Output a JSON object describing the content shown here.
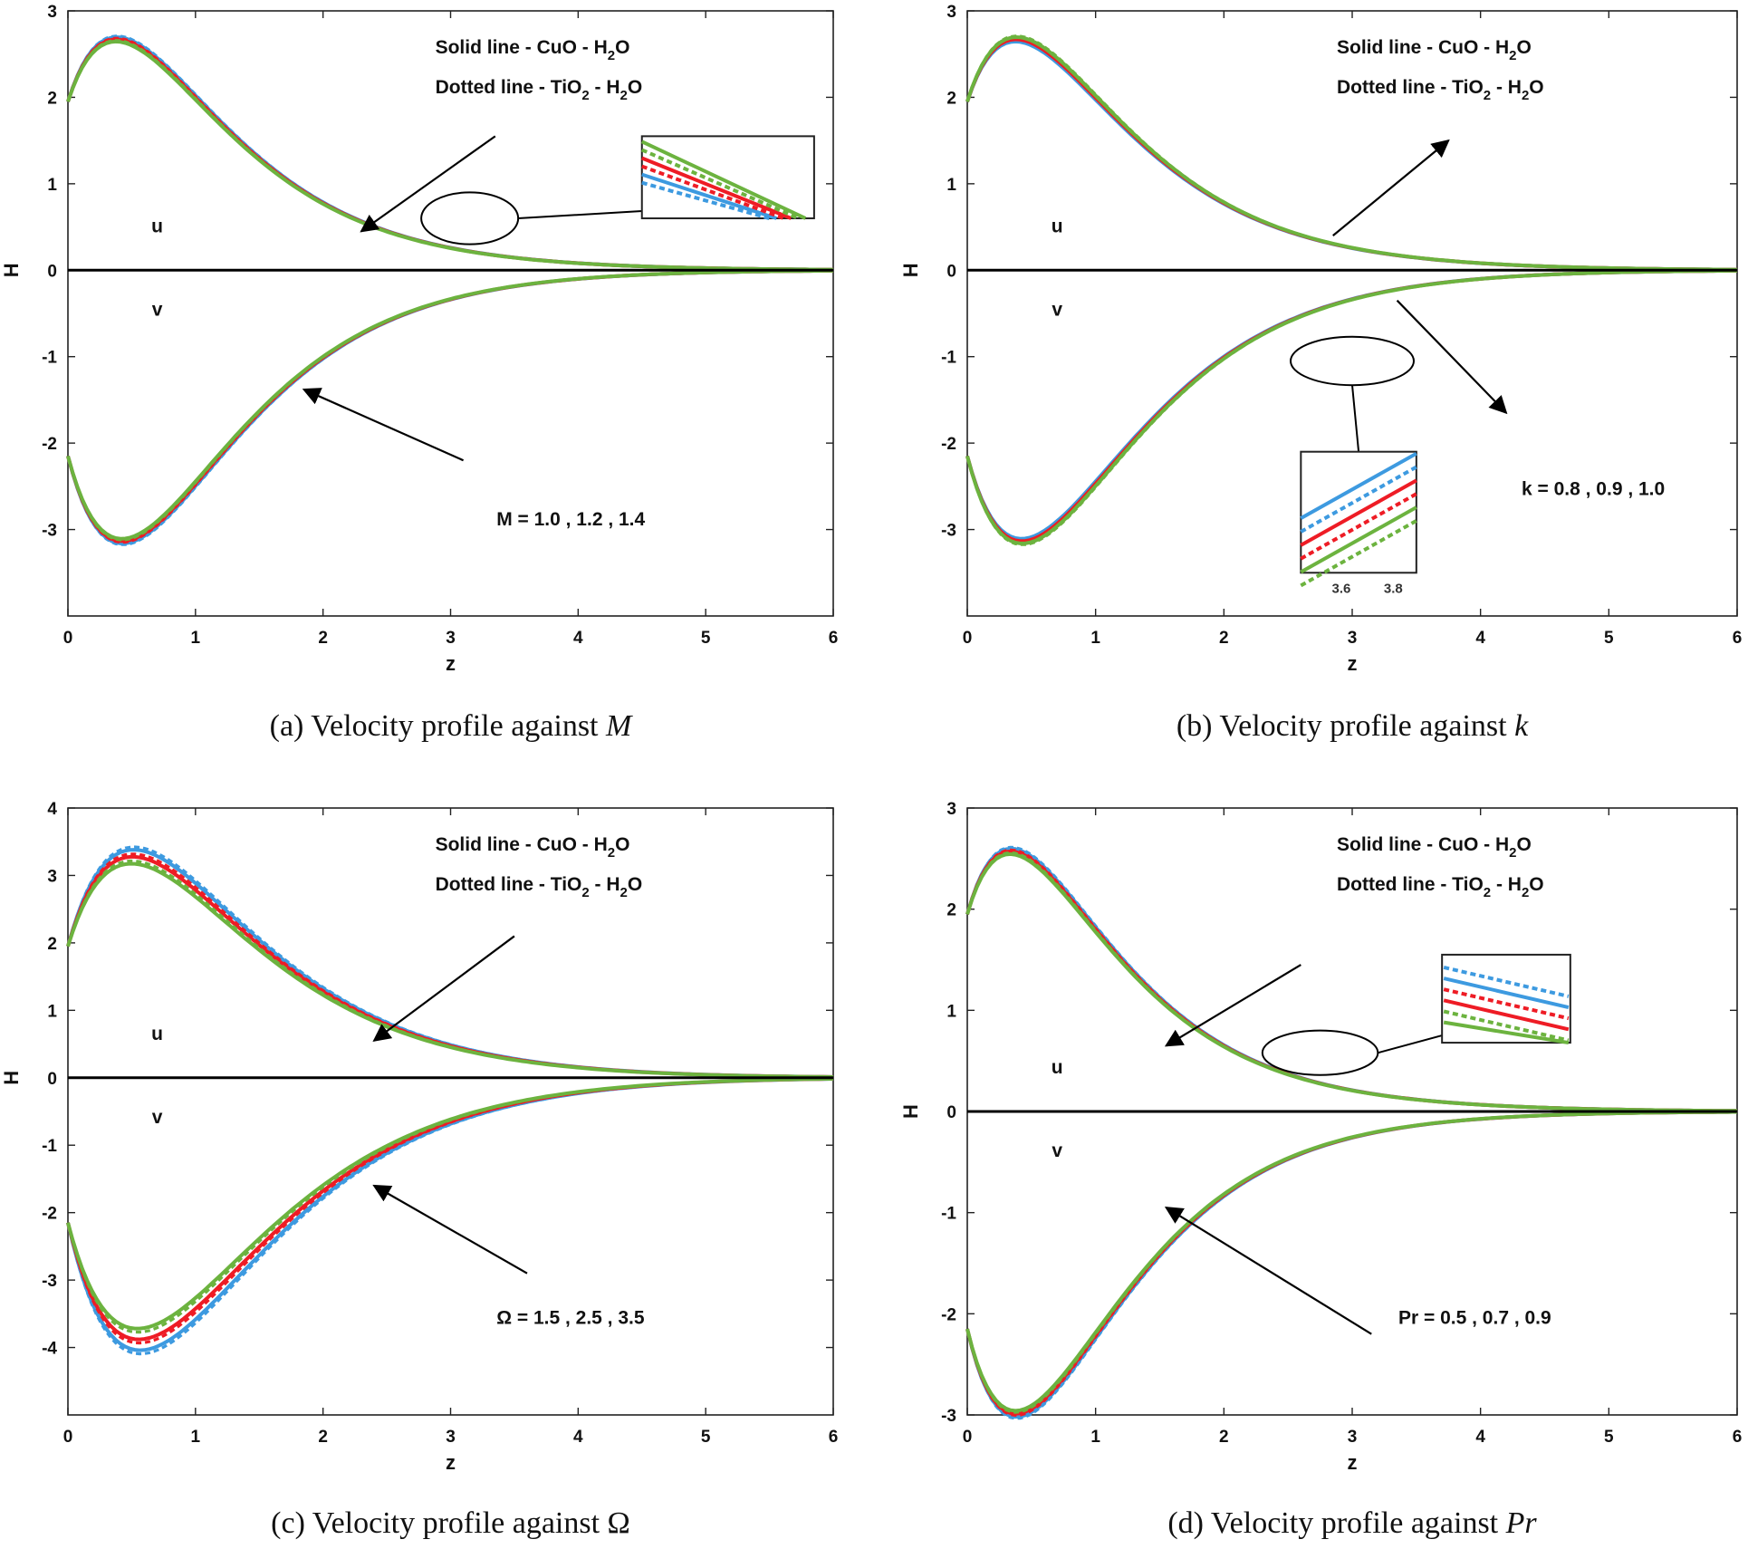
{
  "colors": {
    "blue": "#3d9ae0",
    "red": "#ee1c25",
    "green": "#6cb33f",
    "axis": "#222222"
  },
  "chart_data": [
    {
      "id": "a",
      "type": "line",
      "caption_prefix": "(a)  Velocity profile against ",
      "caption_var": "M",
      "caption_var_italic": true,
      "xlabel": "z",
      "ylabel": "H",
      "xlim": [
        0,
        6
      ],
      "ylim": [
        -4,
        3
      ],
      "yticks": [
        -3,
        -2,
        -1,
        0,
        1,
        2,
        3
      ],
      "xticks": [
        0,
        1,
        2,
        3,
        4,
        5,
        6
      ],
      "legend": [
        "Solid line - CuO - H",
        "2",
        "O",
        "Dotted line - TiO",
        "2",
        " - H",
        "2",
        "O"
      ],
      "legend_lines": [
        {
          "parts": [
            [
              "Solid line - CuO - H",
              false
            ],
            [
              "2",
              true
            ],
            [
              "O",
              false
            ]
          ]
        },
        {
          "parts": [
            [
              "Dotted line - TiO",
              false
            ],
            [
              "2",
              true
            ],
            [
              " - H",
              false
            ],
            [
              "2",
              true
            ],
            [
              "O",
              false
            ]
          ]
        }
      ],
      "curve_labels": {
        "u": "u",
        "v": "v"
      },
      "param_text": "M = 1.0 , 1.2 , 1.4",
      "u_curve": {
        "u0": 1.95,
        "peak": 2.55,
        "peak_z": 0.6,
        "decay": 1.0
      },
      "v_curve": {
        "v0": -2.15,
        "peak": -3.0,
        "peak_z": 0.65,
        "decay": 1.0
      },
      "series": [
        {
          "color": "blue",
          "style": "dotted",
          "u_scale": 1.025,
          "v_scale": 1.02
        },
        {
          "color": "blue",
          "style": "solid",
          "u_scale": 1.015,
          "v_scale": 1.012
        },
        {
          "color": "red",
          "style": "dotted",
          "u_scale": 1.005,
          "v_scale": 1.004
        },
        {
          "color": "red",
          "style": "solid",
          "u_scale": 0.995,
          "v_scale": 0.996
        },
        {
          "color": "green",
          "style": "dotted",
          "u_scale": 0.985,
          "v_scale": 0.988
        },
        {
          "color": "green",
          "style": "solid",
          "u_scale": 0.975,
          "v_scale": 0.98
        }
      ],
      "arrows": [
        {
          "from": [
            3.35,
            1.55
          ],
          "to": [
            2.3,
            0.45
          ]
        },
        {
          "from": [
            3.1,
            -2.2
          ],
          "to": [
            1.85,
            -1.38
          ]
        }
      ],
      "zoom": {
        "ellipse": [
          3.15,
          0.6,
          0.38,
          0.3
        ],
        "box": [
          4.5,
          5.85,
          1.55,
          0.6
        ],
        "ticks": []
      }
    },
    {
      "id": "b",
      "type": "line",
      "caption_prefix": "(b)  Velocity profile against ",
      "caption_var": "k",
      "caption_var_italic": true,
      "xlabel": "z",
      "ylabel": "H",
      "xlim": [
        0,
        6
      ],
      "ylim": [
        -4,
        3
      ],
      "yticks": [
        -3,
        -2,
        -1,
        0,
        1,
        2,
        3
      ],
      "xticks": [
        0,
        1,
        2,
        3,
        4,
        5,
        6
      ],
      "legend_lines": [
        {
          "parts": [
            [
              "Solid line - CuO - H",
              false
            ],
            [
              "2",
              true
            ],
            [
              "O",
              false
            ]
          ]
        },
        {
          "parts": [
            [
              "Dotted line - TiO",
              false
            ],
            [
              "2",
              true
            ],
            [
              " - H",
              false
            ],
            [
              "2",
              true
            ],
            [
              "O",
              false
            ]
          ]
        }
      ],
      "curve_labels": {
        "u": "u",
        "v": "v"
      },
      "param_text": "k = 0.8 , 0.9 , 1.0",
      "u_curve": {
        "u0": 1.95,
        "peak": 2.55,
        "peak_z": 0.6,
        "decay": 1.0
      },
      "v_curve": {
        "v0": -2.15,
        "peak": -3.0,
        "peak_z": 0.65,
        "decay": 1.0
      },
      "series": [
        {
          "color": "blue",
          "style": "solid",
          "u_scale": 0.975,
          "v_scale": 0.98
        },
        {
          "color": "blue",
          "style": "dotted",
          "u_scale": 0.985,
          "v_scale": 0.988
        },
        {
          "color": "red",
          "style": "solid",
          "u_scale": 0.995,
          "v_scale": 0.996
        },
        {
          "color": "red",
          "style": "dotted",
          "u_scale": 1.005,
          "v_scale": 1.004
        },
        {
          "color": "green",
          "style": "solid",
          "u_scale": 1.015,
          "v_scale": 1.012
        },
        {
          "color": "green",
          "style": "dotted",
          "u_scale": 1.025,
          "v_scale": 1.02
        }
      ],
      "arrows": [
        {
          "from": [
            2.85,
            0.4
          ],
          "to": [
            3.75,
            1.5
          ]
        },
        {
          "from": [
            3.35,
            -0.35
          ],
          "to": [
            4.2,
            -1.65
          ]
        }
      ],
      "zoom": {
        "ellipse": [
          3.0,
          -1.05,
          0.48,
          0.28
        ],
        "box": [
          2.6,
          3.5,
          -2.1,
          -3.5
        ],
        "ticks": [
          "3.6",
          "3.8"
        ]
      }
    },
    {
      "id": "c",
      "type": "line",
      "caption_prefix": "(c)  Velocity profile against ",
      "caption_var": "Ω",
      "caption_var_italic": false,
      "xlabel": "z",
      "ylabel": "H",
      "xlim": [
        0,
        6
      ],
      "ylim": [
        -5,
        4
      ],
      "yticks": [
        -4,
        -3,
        -2,
        -1,
        0,
        1,
        2,
        3,
        4
      ],
      "xticks": [
        0,
        1,
        2,
        3,
        4,
        5,
        6
      ],
      "legend_lines": [
        {
          "parts": [
            [
              "Solid line - CuO - H",
              false
            ],
            [
              "2",
              true
            ],
            [
              "O",
              false
            ]
          ]
        },
        {
          "parts": [
            [
              "Dotted line - TiO",
              false
            ],
            [
              "2",
              true
            ],
            [
              " - H",
              false
            ],
            [
              "2",
              true
            ],
            [
              "O",
              false
            ]
          ]
        }
      ],
      "curve_labels": {
        "u": "u",
        "v": "v"
      },
      "param_text": "Ω = 1.5 , 2.5 , 3.5",
      "u_curve": {
        "u0": 1.95,
        "peak": 3.2,
        "peak_z": 0.7,
        "decay": 1.0
      },
      "v_curve": {
        "v0": -2.15,
        "peak": -3.8,
        "peak_z": 0.75,
        "decay": 1.0
      },
      "series": [
        {
          "color": "blue",
          "style": "dotted",
          "u_scale": 1.06,
          "v_scale": 1.07
        },
        {
          "color": "blue",
          "style": "solid",
          "u_scale": 1.04,
          "v_scale": 1.05
        },
        {
          "color": "red",
          "style": "dotted",
          "u_scale": 1.01,
          "v_scale": 1.01
        },
        {
          "color": "red",
          "style": "solid",
          "u_scale": 0.99,
          "v_scale": 0.99
        },
        {
          "color": "green",
          "style": "dotted",
          "u_scale": 0.96,
          "v_scale": 0.95
        },
        {
          "color": "green",
          "style": "solid",
          "u_scale": 0.94,
          "v_scale": 0.93
        }
      ],
      "arrows": [
        {
          "from": [
            3.5,
            2.1
          ],
          "to": [
            2.4,
            0.55
          ]
        },
        {
          "from": [
            3.6,
            -2.9
          ],
          "to": [
            2.4,
            -1.6
          ]
        }
      ],
      "zoom": null
    },
    {
      "id": "d",
      "type": "line",
      "caption_prefix": "(d)  Velocity profile against ",
      "caption_var": "Pr",
      "caption_var_italic": true,
      "xlabel": "z",
      "ylabel": "H",
      "xlim": [
        0,
        6
      ],
      "ylim": [
        -3,
        3
      ],
      "yticks": [
        -3,
        -2,
        -1,
        0,
        1,
        2,
        3
      ],
      "xticks": [
        0,
        1,
        2,
        3,
        4,
        5,
        6
      ],
      "legend_lines": [
        {
          "parts": [
            [
              "Solid line - CuO - H",
              false
            ],
            [
              "2",
              true
            ],
            [
              "O",
              false
            ]
          ]
        },
        {
          "parts": [
            [
              "Dotted line - TiO",
              false
            ],
            [
              "2",
              true
            ],
            [
              " - H",
              false
            ],
            [
              "2",
              true
            ],
            [
              "O",
              false
            ]
          ]
        }
      ],
      "curve_labels": {
        "u": "u",
        "v": "v"
      },
      "param_text": "Pr = 0.5 , 0.7 , 0.9",
      "u_curve": {
        "u0": 1.95,
        "peak": 2.45,
        "peak_z": 0.55,
        "decay": 1.0
      },
      "v_curve": {
        "v0": -2.15,
        "peak": -2.85,
        "peak_z": 0.6,
        "decay": 1.0
      },
      "series": [
        {
          "color": "blue",
          "style": "dotted",
          "u_scale": 1.03,
          "v_scale": 1.025
        },
        {
          "color": "blue",
          "style": "solid",
          "u_scale": 1.018,
          "v_scale": 1.015
        },
        {
          "color": "red",
          "style": "dotted",
          "u_scale": 1.006,
          "v_scale": 1.005
        },
        {
          "color": "red",
          "style": "solid",
          "u_scale": 0.994,
          "v_scale": 0.995
        },
        {
          "color": "green",
          "style": "dotted",
          "u_scale": 0.982,
          "v_scale": 0.985
        },
        {
          "color": "green",
          "style": "solid",
          "u_scale": 0.97,
          "v_scale": 0.975
        }
      ],
      "arrows": [
        {
          "from": [
            2.6,
            1.45
          ],
          "to": [
            1.55,
            0.65
          ]
        },
        {
          "from": [
            3.15,
            -2.2
          ],
          "to": [
            1.55,
            -0.95
          ]
        }
      ],
      "zoom": {
        "ellipse": [
          2.75,
          0.58,
          0.45,
          0.22
        ],
        "box": [
          3.7,
          4.7,
          1.55,
          0.68
        ],
        "ticks": []
      }
    }
  ]
}
